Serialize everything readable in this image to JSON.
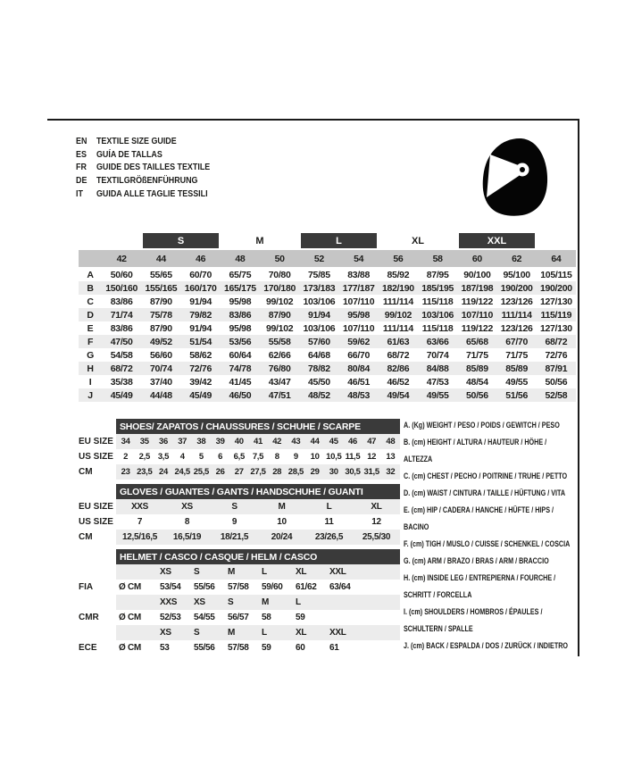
{
  "header": {
    "languages": [
      {
        "code": "EN",
        "text": "TEXTILE SIZE GUIDE"
      },
      {
        "code": "ES",
        "text": "GUÍA DE TALLAS"
      },
      {
        "code": "FR",
        "text": "GUIDE DES TAILLES TEXTILE"
      },
      {
        "code": "DE",
        "text": "TEXTILGRÖßENFÜHRUNG"
      },
      {
        "code": "IT",
        "text": "GUIDA ALLE TAGLIE TESSILI"
      }
    ],
    "icon": "full-face-helmet"
  },
  "textile_table": {
    "bands": [
      {
        "label": "S",
        "highlighted": true
      },
      {
        "label": "M",
        "highlighted": false
      },
      {
        "label": "L",
        "highlighted": true
      },
      {
        "label": "XL",
        "highlighted": false
      },
      {
        "label": "XXL",
        "highlighted": true
      }
    ],
    "sizes": [
      "42",
      "44",
      "46",
      "48",
      "50",
      "52",
      "54",
      "56",
      "58",
      "60",
      "62",
      "64"
    ],
    "rows": [
      {
        "letter": "A",
        "values": [
          "50/60",
          "55/65",
          "60/70",
          "65/75",
          "70/80",
          "75/85",
          "83/88",
          "85/92",
          "87/95",
          "90/100",
          "95/100",
          "105/115"
        ]
      },
      {
        "letter": "B",
        "values": [
          "150/160",
          "155/165",
          "160/170",
          "165/175",
          "170/180",
          "173/183",
          "177/187",
          "182/190",
          "185/195",
          "187/198",
          "190/200",
          "190/200"
        ]
      },
      {
        "letter": "C",
        "values": [
          "83/86",
          "87/90",
          "91/94",
          "95/98",
          "99/102",
          "103/106",
          "107/110",
          "111/114",
          "115/118",
          "119/122",
          "123/126",
          "127/130"
        ]
      },
      {
        "letter": "D",
        "values": [
          "71/74",
          "75/78",
          "79/82",
          "83/86",
          "87/90",
          "91/94",
          "95/98",
          "99/102",
          "103/106",
          "107/110",
          "111/114",
          "115/119"
        ]
      },
      {
        "letter": "E",
        "values": [
          "83/86",
          "87/90",
          "91/94",
          "95/98",
          "99/102",
          "103/106",
          "107/110",
          "111/114",
          "115/118",
          "119/122",
          "123/126",
          "127/130"
        ]
      },
      {
        "letter": "F",
        "values": [
          "47/50",
          "49/52",
          "51/54",
          "53/56",
          "55/58",
          "57/60",
          "59/62",
          "61/63",
          "63/66",
          "65/68",
          "67/70",
          "68/72"
        ]
      },
      {
        "letter": "G",
        "values": [
          "54/58",
          "56/60",
          "58/62",
          "60/64",
          "62/66",
          "64/68",
          "66/70",
          "68/72",
          "70/74",
          "71/75",
          "71/75",
          "72/76"
        ]
      },
      {
        "letter": "H",
        "values": [
          "68/72",
          "70/74",
          "72/76",
          "74/78",
          "76/80",
          "78/82",
          "80/84",
          "82/86",
          "84/88",
          "85/89",
          "85/89",
          "87/91"
        ]
      },
      {
        "letter": "I",
        "values": [
          "35/38",
          "37/40",
          "39/42",
          "41/45",
          "43/47",
          "45/50",
          "46/51",
          "46/52",
          "47/53",
          "48/54",
          "49/55",
          "50/56"
        ]
      },
      {
        "letter": "J",
        "values": [
          "45/49",
          "44/48",
          "45/49",
          "46/50",
          "47/51",
          "48/52",
          "48/53",
          "49/54",
          "49/55",
          "50/56",
          "51/56",
          "52/58"
        ]
      }
    ]
  },
  "shoes_table": {
    "title": "SHOES/ ZAPATOS / CHAUSSURES / SCHUHE / SCARPE",
    "rows": [
      {
        "label": "EU SIZE",
        "values": [
          "34",
          "35",
          "36",
          "37",
          "38",
          "39",
          "40",
          "41",
          "42",
          "43",
          "44",
          "45",
          "46",
          "47",
          "48"
        ]
      },
      {
        "label": "US SIZE",
        "values": [
          "2",
          "2,5",
          "3,5",
          "4",
          "5",
          "6",
          "6,5",
          "7,5",
          "8",
          "9",
          "10",
          "10,5",
          "11,5",
          "12",
          "13"
        ]
      },
      {
        "label": "CM",
        "values": [
          "23",
          "23,5",
          "24",
          "24,5",
          "25,5",
          "26",
          "27",
          "27,5",
          "28",
          "28,5",
          "29",
          "30",
          "30,5",
          "31,5",
          "32"
        ]
      }
    ]
  },
  "gloves_table": {
    "title": "GLOVES / GUANTES / GANTS / HANDSCHUHE / GUANTI",
    "rows": [
      {
        "label": "EU SIZE",
        "values": [
          "XXS",
          "XS",
          "S",
          "M",
          "L",
          "XL"
        ]
      },
      {
        "label": "US SIZE",
        "values": [
          "7",
          "8",
          "9",
          "10",
          "11",
          "12"
        ]
      },
      {
        "label": "CM",
        "values": [
          "12,5/16,5",
          "16,5/19",
          "18/21,5",
          "20/24",
          "23/26,5",
          "25,5/30"
        ]
      }
    ]
  },
  "helmet_table": {
    "title": "HELMET / CASCO / CASQUE / HELM / CASCO",
    "sections": [
      {
        "label": "FIA",
        "diameter_label": "Ø CM",
        "sizes": [
          "XS",
          "S",
          "M",
          "L",
          "XL",
          "XXL"
        ],
        "values": [
          "53/54",
          "55/56",
          "57/58",
          "59/60",
          "61/62",
          "63/64"
        ]
      },
      {
        "label": "CMR",
        "diameter_label": "Ø CM",
        "sizes": [
          "XXS",
          "XS",
          "S",
          "M",
          "L"
        ],
        "values": [
          "52/53",
          "54/55",
          "56/57",
          "58",
          "59"
        ]
      },
      {
        "label": "ECE",
        "diameter_label": "Ø CM",
        "sizes": [
          "XS",
          "S",
          "M",
          "L",
          "XL",
          "XXL"
        ],
        "values": [
          "53",
          "55/56",
          "57/58",
          "59",
          "60",
          "61"
        ]
      }
    ]
  },
  "legend": {
    "items": [
      "A. (Kg) WEIGHT / PESO / POIDS / GEWITCH / PESO",
      "B. (cm) HEIGHT / ALTURA / HAUTEUR / HÖHE / ALTEZZA",
      "C. (cm) CHEST / PECHO / POITRINE / TRUHE / PETTO",
      "D. (cm) WAIST / CINTURA / TAILLE / HÜFTUNG / VITA",
      "E. (cm) HIP / CADERA / HANCHE / HÜFTE / HIPS /  BACINO",
      "F. (cm) TIGH / MUSLO / CUISSE / SCHENKEL / COSCIA",
      "G. (cm) ARM  / BRAZO / BRAS / ARM / BRACCIO",
      "H. (cm) INSIDE LEG / ENTREPIERNA / FOURCHE / SCHRITT / FORCELLA",
      "I.  (cm) SHOULDERS / HOMBROS / ÉPAULES / SCHULTERN / SPALLE",
      "J. (cm) BACK / ESPALDA / DOS / ZURÜCK / INDIETRO"
    ]
  },
  "colors": {
    "dark_bar": "#3a3a3a",
    "size_band": "#c5c5c5",
    "row_stripe": "#ececec",
    "text": "#1d1d1b"
  }
}
